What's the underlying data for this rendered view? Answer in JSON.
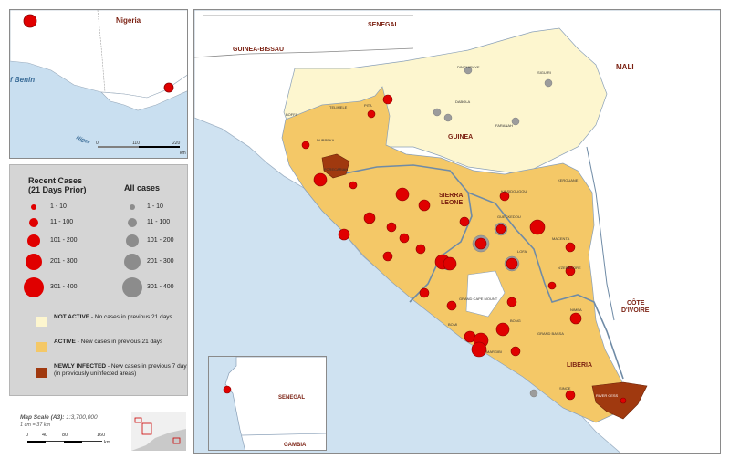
{
  "inset_nigeria": {
    "country_label": "Nigeria",
    "benin_label": "f Benin",
    "river_label": "Niger",
    "scale_ticks": [
      "0",
      "110",
      "220"
    ],
    "scale_unit": "km",
    "colors": {
      "water": "#c9dff0",
      "land": "#ffffff",
      "dot": "#e00000"
    }
  },
  "legend": {
    "recent_title_line1": "Recent Cases",
    "recent_title_line2": "(21 Days Prior)",
    "all_title": "All cases",
    "ranges": [
      "1 - 10",
      "11 - 100",
      "101 - 200",
      "201 - 300",
      "301 - 400"
    ],
    "not_active": {
      "label": "NOT ACTIVE",
      "text": " - No cases in previous 21 days",
      "color": "#fdf6cf"
    },
    "active": {
      "label": "ACTIVE",
      "text": " - New cases in previous 21 days",
      "color": "#f4c867"
    },
    "newly_infected": {
      "label": "NEWLY INFECTED",
      "text": " - New cases in previous  7 days (in previously uninfected areas)",
      "color": "#a0390f"
    },
    "colors": {
      "recent_dot": "#e00000",
      "all_dot": "#8c8c8c"
    }
  },
  "scale": {
    "title": "Map Scale (A3):",
    "ratio": "1:3,700,000",
    "equivalence": "1 cm = 37 km",
    "ticks": [
      "0",
      "40",
      "80",
      "160"
    ],
    "unit": "km"
  },
  "main_map": {
    "countries": {
      "senegal": "SENEGAL",
      "guinea_bissau": "GUINEA-BISSAU",
      "mali": "MALI",
      "guinea": "GUINEA",
      "sierra_leone_1": "SIERRA",
      "sierra_leone_2": "LEONE",
      "cote_1": "CÔTE",
      "cote_2": "D'IVOIRE",
      "liberia": "LIBERIA"
    },
    "colors": {
      "water": "#cfe2f1",
      "land": "#ffffff",
      "not_active": "#fdf6cf",
      "active": "#f4c867",
      "newly": "#a0390f",
      "border": "#6f8ba6",
      "recent_dot": "#e00000",
      "all_dot": "#9c9c9c"
    },
    "district_labels": [
      "BOFFA",
      "TELIMELE",
      "PITA",
      "DUBREKA",
      "FORECARIAH",
      "KISSIDOUGOU",
      "GUECKEDOU",
      "MACENTA",
      "LOFA",
      "BONG",
      "NIMBA",
      "GRAND CAPE MOUNT",
      "BOMI",
      "MARGIBI",
      "GRAND BASSA",
      "SINOE",
      "RIVER CESS",
      "KEROUANE",
      "FARANAH",
      "DINGUIRAYE",
      "SIGUIRI",
      "DABOLA",
      "N'ZEREKORE"
    ]
  },
  "inset_senegal": {
    "country_label": "SENEGAL",
    "gambia_label": "GAMBIA",
    "colors": {
      "dot": "#e00000"
    }
  }
}
